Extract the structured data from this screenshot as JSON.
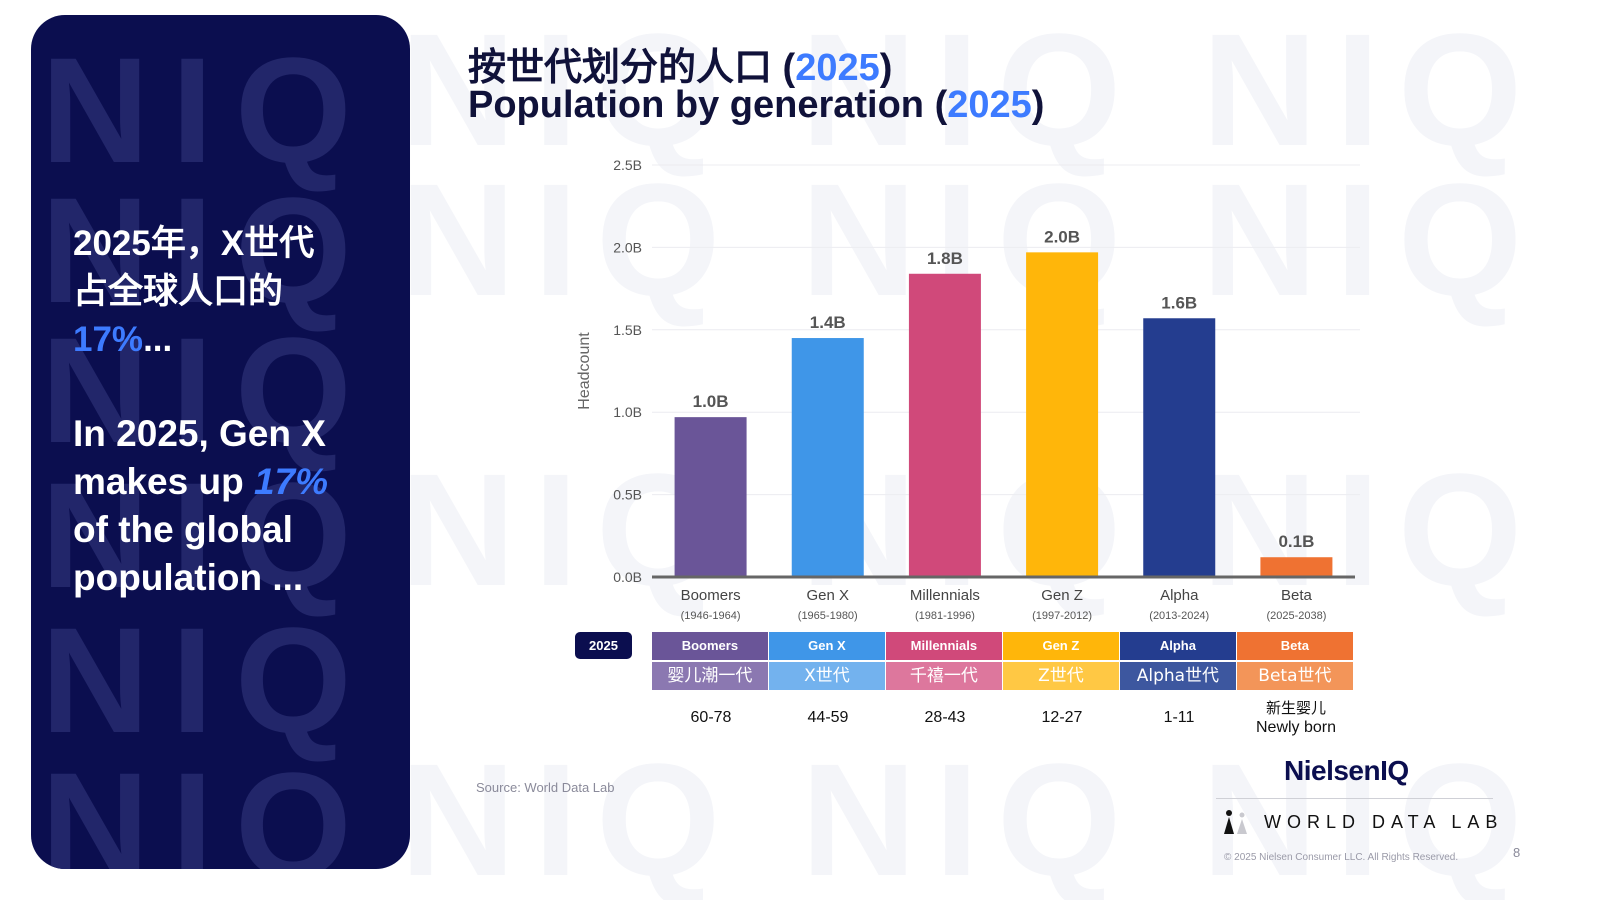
{
  "watermark_text": "NIQ",
  "left_panel": {
    "zh_prefix": "2025年，X世代占全球人口的",
    "zh_percent": "17%",
    "zh_suffix": "...",
    "en_prefix": "In 2025, Gen X makes up",
    "en_percent": "17%",
    "en_suffix": "of the global population ...",
    "bg_color": "#0b0e4f",
    "accent_color": "#3d7bff"
  },
  "title": {
    "zh": "按世代划分的人口 (",
    "en": "Population by generation (",
    "year": "2025",
    "close": ")"
  },
  "chart_data": {
    "type": "bar",
    "ylabel": "Headcount",
    "ylim": [
      0,
      2.5
    ],
    "yticks": [
      "0.0B",
      "0.5B",
      "1.0B",
      "1.5B",
      "2.0B",
      "2.5B"
    ],
    "categories": [
      "Boomers",
      "Gen X",
      "Millennials",
      "Gen Z",
      "Alpha",
      "Beta"
    ],
    "category_years": [
      "(1946-1964)",
      "(1965-1980)",
      "(1981-1996)",
      "(1997-2012)",
      "(2013-2024)",
      "(2025-2038)"
    ],
    "values": [
      0.97,
      1.45,
      1.84,
      1.97,
      1.57,
      0.12
    ],
    "data_labels": [
      "1.0B",
      "1.4B",
      "1.8B",
      "2.0B",
      "1.6B",
      "0.1B"
    ],
    "colors": [
      "#6a5598",
      "#3f96e8",
      "#d0497a",
      "#ffb60a",
      "#243d8f",
      "#ef7232"
    ],
    "grid": true
  },
  "table_2025": {
    "badge": "2025",
    "top_labels": [
      "Boomers",
      "Gen X",
      "Millennials",
      "Gen Z",
      "Alpha",
      "Beta"
    ],
    "bottom_labels": [
      "婴儿潮一代",
      "X世代",
      "千禧一代",
      "Z世代",
      "Alpha世代",
      "Beta世代"
    ],
    "top_colors": [
      "#6a5598",
      "#3f96e8",
      "#d0497a",
      "#ffb60a",
      "#243d8f",
      "#ef7232"
    ],
    "bottom_colors": [
      "#8b78b1",
      "#73b2ee",
      "#dd779d",
      "#ffc844",
      "#3d579f",
      "#f39559"
    ],
    "ages": [
      "60-78",
      "44-59",
      "28-43",
      "12-27",
      "1-11",
      ""
    ],
    "newborn_zh": "新生婴儿",
    "newborn_en": "Newly born"
  },
  "source": "Source: World Data Lab",
  "logos": {
    "niq": "NielsenIQ",
    "wdl": "WORLD DATA LAB"
  },
  "copyright": "© 2025 Nielsen Consumer LLC. All Rights Reserved.",
  "page_number": "8"
}
